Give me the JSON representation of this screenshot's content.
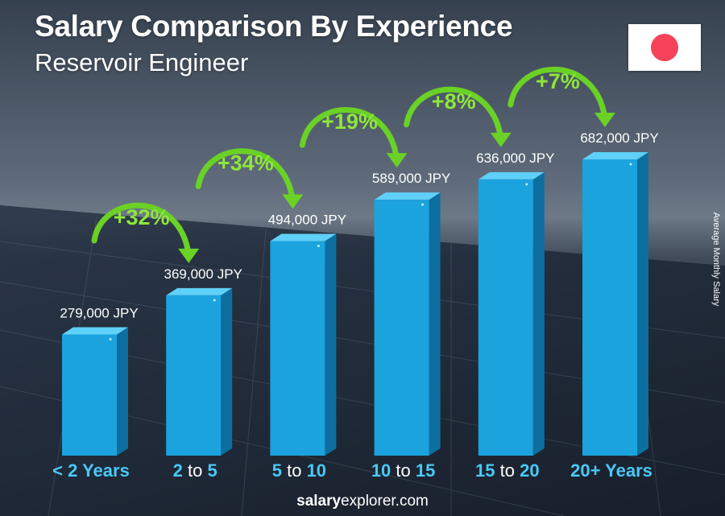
{
  "header": {
    "title": "Salary Comparison By Experience",
    "subtitle": "Reservoir Engineer"
  },
  "flag": {
    "country": "Japan",
    "background": "#ffffff",
    "disc_color": "#f6435b"
  },
  "side_label": "Average Monthly Salary",
  "footer": {
    "brand_bold": "salary",
    "brand_rest": "explorer.com"
  },
  "colors": {
    "bar_front": "#1ba3dd",
    "bar_side": "#0d6f9f",
    "bar_top": "#5fd0f7",
    "increase_text": "#8ee63b",
    "arrow": "#6ad126",
    "category_number": "#49c9f5",
    "category_connector": "#ffffff"
  },
  "chart_data": {
    "type": "bar",
    "title": "Salary Comparison By Experience",
    "subtitle": "Reservoir Engineer",
    "ylabel": "Average Monthly Salary",
    "unit": "JPY",
    "categories": [
      "< 2 Years",
      "2 to 5",
      "5 to 10",
      "10 to 15",
      "15 to 20",
      "20+ Years"
    ],
    "category_parts": [
      [
        {
          "t": "< 2 Years",
          "c": "num"
        }
      ],
      [
        {
          "t": "2",
          "c": "num"
        },
        {
          "t": " to ",
          "c": "conn"
        },
        {
          "t": "5",
          "c": "num"
        }
      ],
      [
        {
          "t": "5",
          "c": "num"
        },
        {
          "t": " to ",
          "c": "conn"
        },
        {
          "t": "10",
          "c": "num"
        }
      ],
      [
        {
          "t": "10",
          "c": "num"
        },
        {
          "t": " to ",
          "c": "conn"
        },
        {
          "t": "15",
          "c": "num"
        }
      ],
      [
        {
          "t": "15",
          "c": "num"
        },
        {
          "t": " to ",
          "c": "conn"
        },
        {
          "t": "20",
          "c": "num"
        }
      ],
      [
        {
          "t": "20+ Years",
          "c": "num"
        }
      ]
    ],
    "values": [
      279000,
      369000,
      494000,
      589000,
      636000,
      682000
    ],
    "value_labels": [
      "279,000 JPY",
      "369,000 JPY",
      "494,000 JPY",
      "589,000 JPY",
      "636,000 JPY",
      "682,000 JPY"
    ],
    "increases": [
      "+32%",
      "+34%",
      "+19%",
      "+8%",
      "+7%"
    ],
    "ylim": [
      0,
      682000
    ],
    "grid": false,
    "legend": "none"
  }
}
